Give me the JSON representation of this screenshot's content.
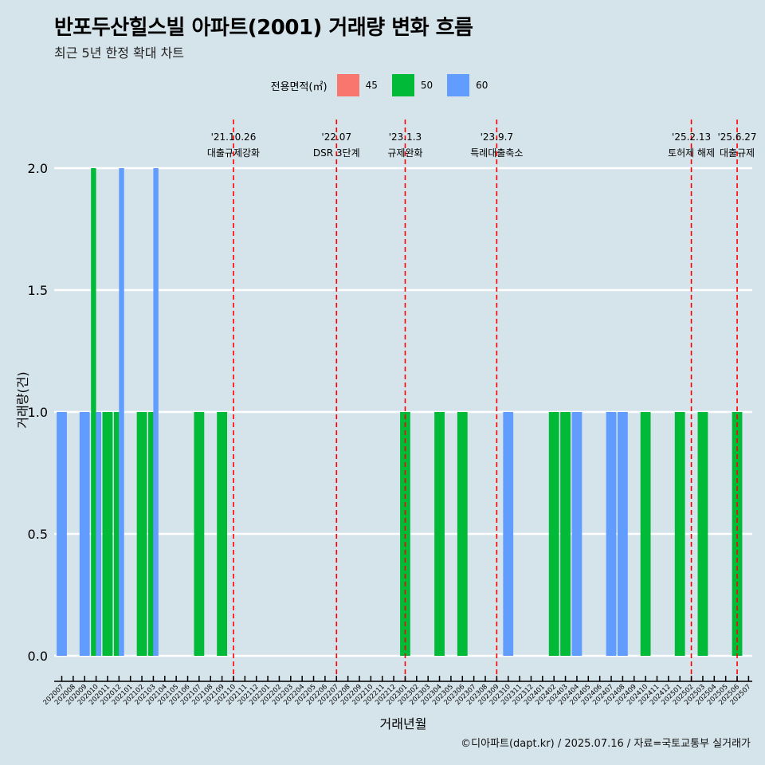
{
  "title": "반포두산힐스빌 아파트(2001) 거래량 변화 흐름",
  "subtitle": "최근 5년 한정 확대 차트",
  "legend": {
    "title": "전용면적(㎡)",
    "items": [
      {
        "label": "45",
        "color": "#f8766d"
      },
      {
        "label": "50",
        "color": "#00ba38"
      },
      {
        "label": "60",
        "color": "#619cff"
      }
    ]
  },
  "caption": "©디아파트(dapt.kr) / 2025.07.16 / 자료=국토교통부 실거래가",
  "chart_data": {
    "type": "bar",
    "xlabel": "거래년월",
    "ylabel": "거래량(건)",
    "ylim": [
      0,
      2
    ],
    "yticks": [
      "0.0",
      "0.5",
      "1.0",
      "1.5",
      "2.0"
    ],
    "grid": true,
    "legend_position": "top",
    "categories": [
      "202007",
      "202008",
      "202009",
      "202010",
      "202011",
      "202012",
      "202101",
      "202102",
      "202103",
      "202104",
      "202105",
      "202106",
      "202107",
      "202108",
      "202109",
      "202110",
      "202111",
      "202112",
      "202201",
      "202202",
      "202203",
      "202204",
      "202205",
      "202206",
      "202207",
      "202208",
      "202209",
      "202210",
      "202211",
      "202212",
      "202301",
      "202302",
      "202303",
      "202304",
      "202305",
      "202306",
      "202307",
      "202308",
      "202309",
      "202310",
      "202311",
      "202312",
      "202401",
      "202402",
      "202403",
      "202404",
      "202405",
      "202406",
      "202407",
      "202408",
      "202409",
      "202410",
      "202411",
      "202412",
      "202501",
      "202502",
      "202503",
      "202504",
      "202505",
      "202506",
      "202507"
    ],
    "series": [
      {
        "name": "45",
        "color": "#f8766d",
        "points": []
      },
      {
        "name": "50",
        "color": "#00ba38",
        "points": [
          {
            "x": "202010",
            "y": 2
          },
          {
            "x": "202011",
            "y": 1
          },
          {
            "x": "202012",
            "y": 1
          },
          {
            "x": "202102",
            "y": 1
          },
          {
            "x": "202103",
            "y": 1
          },
          {
            "x": "202107",
            "y": 1
          },
          {
            "x": "202109",
            "y": 1
          },
          {
            "x": "202301",
            "y": 1
          },
          {
            "x": "202304",
            "y": 1
          },
          {
            "x": "202306",
            "y": 1
          },
          {
            "x": "202402",
            "y": 1
          },
          {
            "x": "202403",
            "y": 1
          },
          {
            "x": "202410",
            "y": 1
          },
          {
            "x": "202501",
            "y": 1
          },
          {
            "x": "202503",
            "y": 1
          },
          {
            "x": "202506",
            "y": 1
          }
        ]
      },
      {
        "name": "60",
        "color": "#619cff",
        "points": [
          {
            "x": "202007",
            "y": 1
          },
          {
            "x": "202009",
            "y": 1
          },
          {
            "x": "202010",
            "y": 1
          },
          {
            "x": "202012",
            "y": 2
          },
          {
            "x": "202103",
            "y": 2
          },
          {
            "x": "202310",
            "y": 1
          },
          {
            "x": "202404",
            "y": 1
          },
          {
            "x": "202407",
            "y": 1
          },
          {
            "x": "202408",
            "y": 1
          }
        ]
      }
    ],
    "annotations": [
      {
        "x": "202110",
        "date": "'21.10.26",
        "label": "대출규제강화"
      },
      {
        "x": "202207",
        "date": "'22.07",
        "label": "DSR 3단계"
      },
      {
        "x": "202301",
        "date": "'23.1.3",
        "label": "규제완화"
      },
      {
        "x": "202309",
        "date": "'23.9.7",
        "label": "특례대출축소"
      },
      {
        "x": "202502",
        "date": "'25.2.13",
        "label": "토허제 해제"
      },
      {
        "x": "202506",
        "date": "'25.6.27",
        "label": "대출규제"
      }
    ],
    "annotation_color": "#ff0000"
  }
}
